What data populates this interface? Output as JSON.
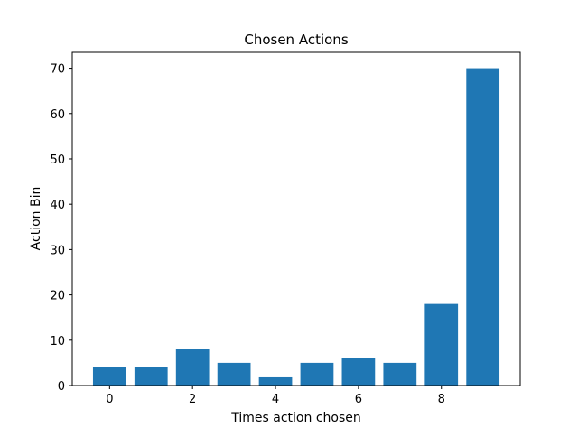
{
  "chart_data": {
    "type": "bar",
    "title": "Chosen Actions",
    "xlabel": "Times action chosen",
    "ylabel": "Action Bin",
    "x": [
      0,
      1,
      2,
      3,
      4,
      5,
      6,
      7,
      8,
      9
    ],
    "values": [
      4,
      4,
      8,
      5,
      2,
      5,
      6,
      5,
      18,
      70
    ],
    "xlim": [
      -0.9,
      9.9
    ],
    "ylim": [
      0,
      73.5
    ],
    "xticks": [
      0,
      2,
      4,
      6,
      8
    ],
    "yticks": [
      0,
      10,
      20,
      30,
      40,
      50,
      60,
      70
    ],
    "bar_color": "#1f77b4",
    "grid": false,
    "legend": "none"
  }
}
